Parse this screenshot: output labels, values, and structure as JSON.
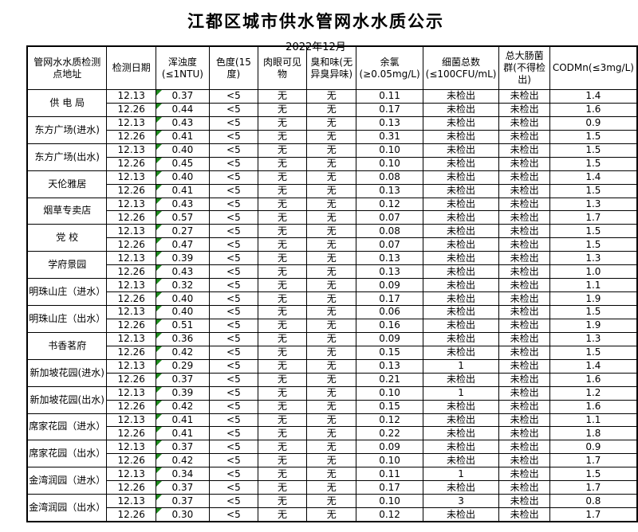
{
  "page": {
    "title": "江都区城市供水管网水水质公示",
    "subtitle": "2022年12月"
  },
  "colors": {
    "flag_green": "#1e8a1e",
    "border_black": "#000000"
  },
  "table": {
    "columns": [
      "管网水水质检测点地址",
      "检测日期",
      "浑浊度(≤1NTU)",
      "色度(15度)",
      "肉眼可见物",
      "臭和味(无异臭异味)",
      "余氯(≥0.05mg/L)",
      "细菌总数(≤100CFU/mL)",
      "总大肠菌群(不得检出)",
      "CODMn(≤3mg/L)"
    ],
    "turbidity_flag_icon": "green-corner-triangle",
    "rows": [
      {
        "location": "供 电 局",
        "samples": [
          [
            "12.13",
            "0.37",
            "<5",
            "无",
            "无",
            "0.11",
            "未检出",
            "未检出",
            "1.4"
          ],
          [
            "12.26",
            "0.44",
            "<5",
            "无",
            "无",
            "0.17",
            "未检出",
            "未检出",
            "1.6"
          ]
        ]
      },
      {
        "location": "东方广场(进水)",
        "samples": [
          [
            "12.13",
            "0.43",
            "<5",
            "无",
            "无",
            "0.13",
            "未检出",
            "未检出",
            "0.9"
          ],
          [
            "12.26",
            "0.41",
            "<5",
            "无",
            "无",
            "0.31",
            "未检出",
            "未检出",
            "1.5"
          ]
        ]
      },
      {
        "location": "东方广场(出水)",
        "samples": [
          [
            "12.13",
            "0.40",
            "<5",
            "无",
            "无",
            "0.10",
            "未检出",
            "未检出",
            "1.5"
          ],
          [
            "12.26",
            "0.45",
            "<5",
            "无",
            "无",
            "0.10",
            "未检出",
            "未检出",
            "1.5"
          ]
        ]
      },
      {
        "location": "天伦雅居",
        "samples": [
          [
            "12.13",
            "0.40",
            "<5",
            "无",
            "无",
            "0.08",
            "未检出",
            "未检出",
            "1.4"
          ],
          [
            "12.26",
            "0.41",
            "<5",
            "无",
            "无",
            "0.13",
            "未检出",
            "未检出",
            "1.5"
          ]
        ]
      },
      {
        "location": "烟草专卖店",
        "samples": [
          [
            "12.13",
            "0.43",
            "<5",
            "无",
            "无",
            "0.12",
            "未检出",
            "未检出",
            "1.3"
          ],
          [
            "12.26",
            "0.57",
            "<5",
            "无",
            "无",
            "0.07",
            "未检出",
            "未检出",
            "1.7"
          ]
        ]
      },
      {
        "location": "党  校",
        "samples": [
          [
            "12.13",
            "0.27",
            "<5",
            "无",
            "无",
            "0.08",
            "未检出",
            "未检出",
            "1.5"
          ],
          [
            "12.26",
            "0.47",
            "<5",
            "无",
            "无",
            "0.07",
            "未检出",
            "未检出",
            "1.5"
          ]
        ]
      },
      {
        "location": "学府景园",
        "samples": [
          [
            "12.13",
            "0.39",
            "<5",
            "无",
            "无",
            "0.13",
            "未检出",
            "未检出",
            "1.3"
          ],
          [
            "12.26",
            "0.43",
            "<5",
            "无",
            "无",
            "0.13",
            "未检出",
            "未检出",
            "1.0"
          ]
        ]
      },
      {
        "location": "明珠山庄（进水）",
        "samples": [
          [
            "12.13",
            "0.32",
            "<5",
            "无",
            "无",
            "0.09",
            "未检出",
            "未检出",
            "1.1"
          ],
          [
            "12.26",
            "0.40",
            "<5",
            "无",
            "无",
            "0.17",
            "未检出",
            "未检出",
            "1.9"
          ]
        ]
      },
      {
        "location": "明珠山庄（出水）",
        "samples": [
          [
            "12.13",
            "0.40",
            "<5",
            "无",
            "无",
            "0.06",
            "未检出",
            "未检出",
            "1.5"
          ],
          [
            "12.26",
            "0.51",
            "<5",
            "无",
            "无",
            "0.16",
            "未检出",
            "未检出",
            "1.9"
          ]
        ]
      },
      {
        "location": "书香茗府",
        "samples": [
          [
            "12.13",
            "0.36",
            "<5",
            "无",
            "无",
            "0.09",
            "未检出",
            "未检出",
            "1.3"
          ],
          [
            "12.26",
            "0.42",
            "<5",
            "无",
            "无",
            "0.15",
            "未检出",
            "未检出",
            "1.5"
          ]
        ]
      },
      {
        "location": "新加坡花园(进水)",
        "samples": [
          [
            "12.13",
            "0.29",
            "<5",
            "无",
            "无",
            "0.13",
            "1",
            "未检出",
            "1.4"
          ],
          [
            "12.26",
            "0.37",
            "<5",
            "无",
            "无",
            "0.21",
            "未检出",
            "未检出",
            "1.6"
          ]
        ]
      },
      {
        "location": "新加坡花园(出水)",
        "samples": [
          [
            "12.13",
            "0.39",
            "<5",
            "无",
            "无",
            "0.10",
            "1",
            "未检出",
            "1.2"
          ],
          [
            "12.26",
            "0.42",
            "<5",
            "无",
            "无",
            "0.15",
            "未检出",
            "未检出",
            "1.6"
          ]
        ]
      },
      {
        "location": "席家花园（进水）",
        "samples": [
          [
            "12.13",
            "0.41",
            "<5",
            "无",
            "无",
            "0.12",
            "未检出",
            "未检出",
            "1.1"
          ],
          [
            "12.26",
            "0.41",
            "<5",
            "无",
            "无",
            "0.22",
            "未检出",
            "未检出",
            "1.8"
          ]
        ]
      },
      {
        "location": "席家花园（出水）",
        "samples": [
          [
            "12.13",
            "0.37",
            "<5",
            "无",
            "无",
            "0.09",
            "未检出",
            "未检出",
            "0.9"
          ],
          [
            "12.26",
            "0.42",
            "<5",
            "无",
            "无",
            "0.10",
            "未检出",
            "未检出",
            "1.7"
          ]
        ]
      },
      {
        "location": "金湾润园（进水）",
        "samples": [
          [
            "12.13",
            "0.34",
            "<5",
            "无",
            "无",
            "0.11",
            "1",
            "未检出",
            "1.5"
          ],
          [
            "12.26",
            "0.37",
            "<5",
            "无",
            "无",
            "0.17",
            "未检出",
            "未检出",
            "1.7"
          ]
        ]
      },
      {
        "location": "金湾润园（出水）",
        "samples": [
          [
            "12.13",
            "0.37",
            "<5",
            "无",
            "无",
            "0.10",
            "3",
            "未检出",
            "0.8"
          ],
          [
            "12.26",
            "0.30",
            "<5",
            "无",
            "无",
            "0.12",
            "未检出",
            "未检出",
            "1.7"
          ]
        ]
      }
    ]
  }
}
